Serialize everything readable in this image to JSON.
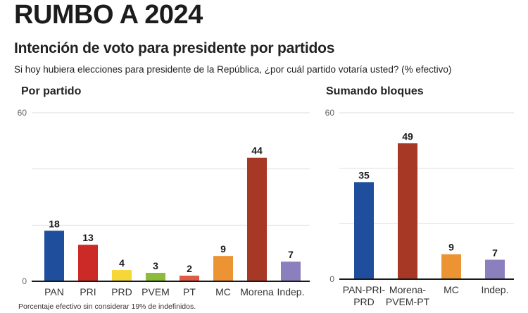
{
  "header": {
    "title": "RUMBO A 2024",
    "subtitle": "Intención de voto para presidente por partidos",
    "question": "Si hoy hubiera elecciones para presidente de la República, ¿por cuál partido votaría usted? (% efectivo)"
  },
  "footnote": "Porcentaje efectivo sin considerar 19% de indefinidos.",
  "chart_data": [
    {
      "type": "bar",
      "title": "Por partido",
      "xlabel": "",
      "ylabel": "",
      "ylim": [
        0,
        60
      ],
      "yticks_labeled": [
        "0",
        "60"
      ],
      "gridlines": [
        0,
        20,
        40,
        60
      ],
      "grid": true,
      "categories": [
        "PAN",
        "PRI",
        "PRD",
        "PVEM",
        "PT",
        "MC",
        "Morena",
        "Indep."
      ],
      "values": [
        18,
        13,
        4,
        3,
        2,
        9,
        44,
        7
      ],
      "colors": [
        "#1f4e9c",
        "#cc2a26",
        "#f5d73a",
        "#8dbb3a",
        "#e05a45",
        "#ec9433",
        "#a73826",
        "#8c7fbd"
      ]
    },
    {
      "type": "bar",
      "title": "Sumando bloques",
      "xlabel": "",
      "ylabel": "",
      "ylim": [
        0,
        60
      ],
      "yticks_labeled": [
        "0",
        "60"
      ],
      "gridlines": [
        0,
        20,
        40,
        60
      ],
      "grid": true,
      "categories": [
        "PAN-PRI-\nPRD",
        "Morena-\nPVEM-PT",
        "MC",
        "Indep."
      ],
      "values": [
        35,
        49,
        9,
        7
      ],
      "colors": [
        "#1f4e9c",
        "#a73826",
        "#ec9433",
        "#8c7fbd"
      ]
    }
  ]
}
